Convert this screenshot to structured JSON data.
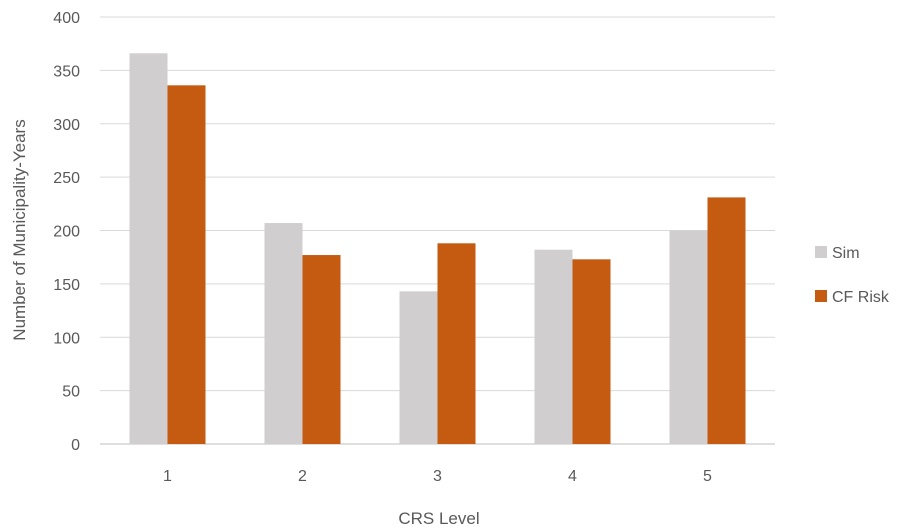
{
  "chart_data": {
    "type": "bar",
    "title": "",
    "xlabel": "CRS Level",
    "ylabel": "Number of Municipality-Years",
    "categories": [
      "1",
      "2",
      "3",
      "4",
      "5"
    ],
    "ylim": [
      0,
      400
    ],
    "yticks": [
      "0",
      "50",
      "100",
      "150",
      "200",
      "250",
      "300",
      "350",
      "400"
    ],
    "grid": true,
    "legend_position": "right",
    "series": [
      {
        "name": "Sim",
        "color": "#d0cece",
        "values": [
          366,
          207,
          143,
          182,
          200
        ]
      },
      {
        "name": "CF Risk",
        "color": "#c55a11",
        "values": [
          336,
          177,
          188,
          173,
          231
        ]
      }
    ]
  }
}
